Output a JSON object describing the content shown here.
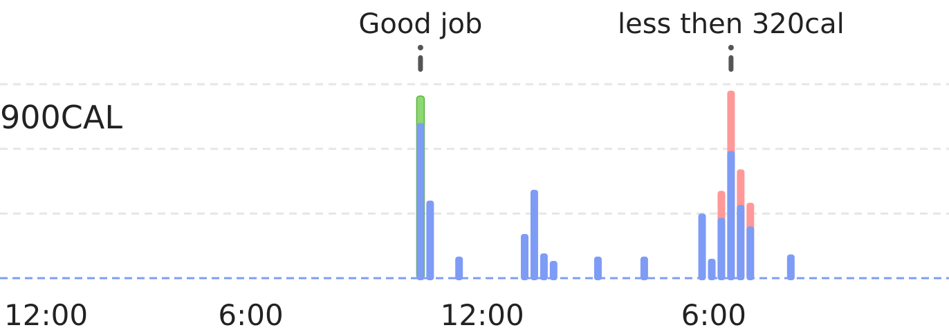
{
  "chart_data": {
    "type": "bar",
    "ylabel": "900CAL",
    "ylim": [
      0,
      900
    ],
    "grid": true,
    "x_ticks": [
      "12:00",
      "6:00",
      "12:00",
      "6:00"
    ],
    "x_tick_hours": [
      0,
      6,
      12,
      18
    ],
    "xlim": [
      -0.5,
      24.1
    ],
    "series": [
      {
        "role": "base",
        "color": "#7e9cf5"
      },
      {
        "role": "good_excess",
        "color": "#8ed873",
        "stroke": "#5ab43c"
      },
      {
        "role": "over_limit",
        "color": "#ff9898"
      }
    ],
    "bars": [
      {
        "hour": 10.4,
        "base": 720,
        "good": 125
      },
      {
        "hour": 10.65,
        "base": 360
      },
      {
        "hour": 11.4,
        "base": 100
      },
      {
        "hour": 13.1,
        "base": 205
      },
      {
        "hour": 13.35,
        "base": 410
      },
      {
        "hour": 13.6,
        "base": 115
      },
      {
        "hour": 13.85,
        "base": 80
      },
      {
        "hour": 15.0,
        "base": 100
      },
      {
        "hour": 16.2,
        "base": 100
      },
      {
        "hour": 17.7,
        "base": 300
      },
      {
        "hour": 17.95,
        "base": 90
      },
      {
        "hour": 18.2,
        "base": 280,
        "over": 125
      },
      {
        "hour": 18.45,
        "base": 590,
        "over": 280
      },
      {
        "hour": 18.7,
        "base": 340,
        "over": 165
      },
      {
        "hour": 18.95,
        "base": 240,
        "over": 110
      },
      {
        "hour": 20.0,
        "base": 110
      }
    ],
    "annotations": [
      {
        "hour": 10.4,
        "text": "Good job"
      },
      {
        "hour": 18.45,
        "text": "less then 320cal"
      }
    ]
  }
}
